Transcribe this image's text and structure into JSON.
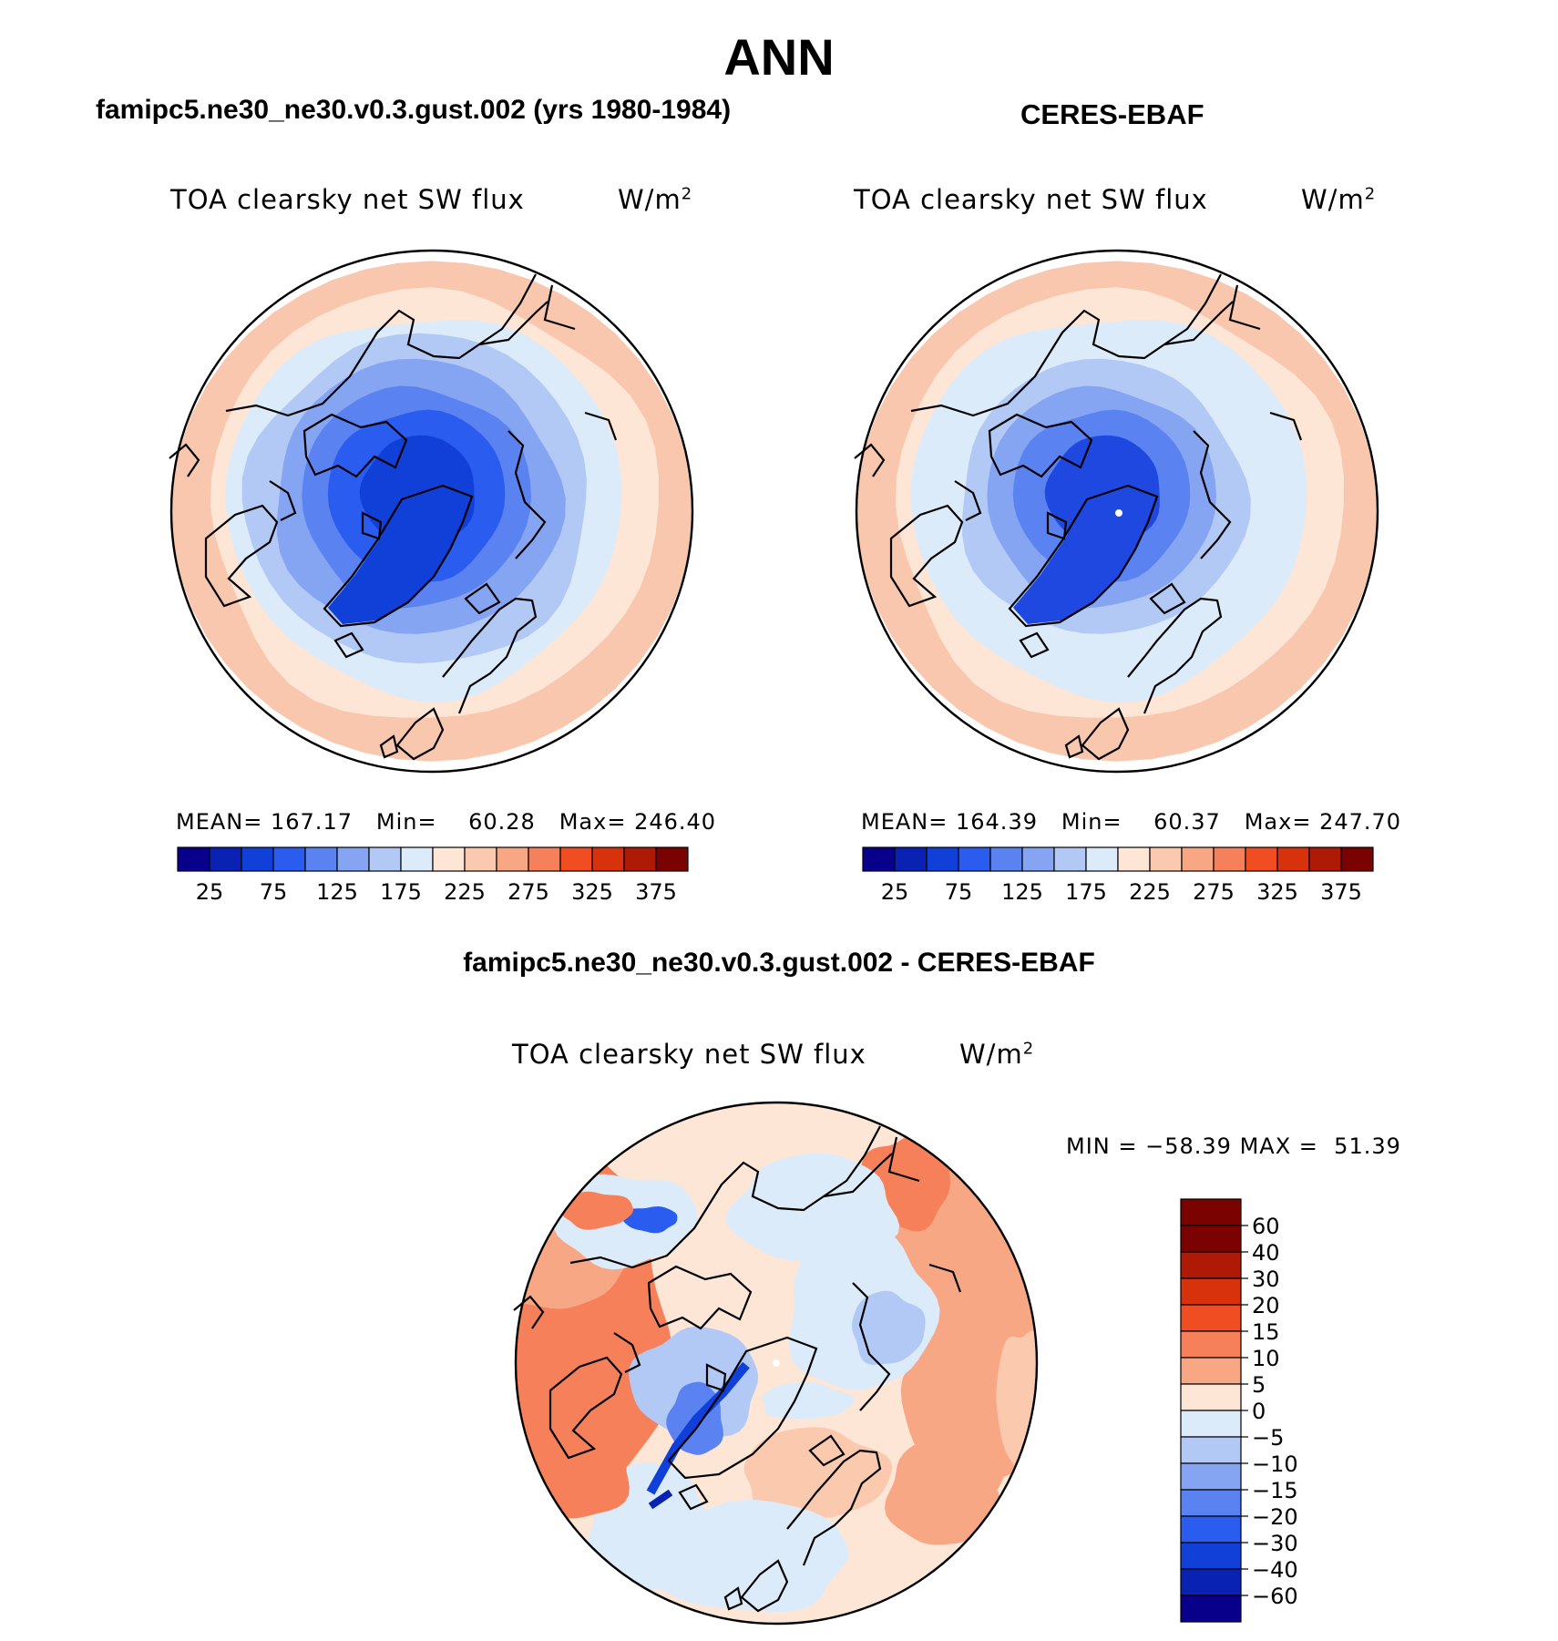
{
  "figure": {
    "main_title": "ANN",
    "variable": "TOA clearsky net SW flux",
    "units": "W/m",
    "units_superscript": "2"
  },
  "panels": {
    "model": {
      "title": "famipc5.ne30_ne30.v0.3.gust.002 (yrs 1980-1984)",
      "stats": {
        "mean_label": "MEAN=",
        "mean": "167.17",
        "min_label": "Min=",
        "min": "60.28",
        "max_label": "Max=",
        "max": "246.40"
      }
    },
    "obs": {
      "title": "CERES-EBAF",
      "stats": {
        "mean_label": "MEAN=",
        "mean": "164.39",
        "min_label": "Min=",
        "min": "60.37",
        "max_label": "Max=",
        "max": "247.70"
      }
    },
    "diff": {
      "title": "famipc5.ne30_ne30.v0.3.gust.002 - CERES-EBAF",
      "stats": {
        "min_label": "MIN =",
        "min": "−58.39",
        "max_label": "MAX =",
        "max": "51.39"
      }
    }
  },
  "colorbars": {
    "absolute": {
      "colors": [
        "#08008a",
        "#0a22b4",
        "#1040d8",
        "#2a5cf0",
        "#5a82f0",
        "#85a5f3",
        "#b3c9f5",
        "#dcebfa",
        "#fde6d5",
        "#fbc9ae",
        "#f8a785",
        "#f6805a",
        "#f04e22",
        "#d8320c",
        "#ae1a06",
        "#7a0302"
      ],
      "tick_labels": [
        "25",
        "75",
        "125",
        "175",
        "225",
        "275",
        "325",
        "375"
      ]
    },
    "difference": {
      "colors": [
        "#7a0302",
        "#ae1a06",
        "#d8320c",
        "#f04e22",
        "#f6805a",
        "#f8a785",
        "#fde6d5",
        "#dcebfa",
        "#b3c9f5",
        "#85a5f3",
        "#5a82f0",
        "#2a5cf0",
        "#1040d8",
        "#0a22b4",
        "#08008a"
      ],
      "tick_labels": [
        "60",
        "40",
        "30",
        "20",
        "15",
        "10",
        "5",
        "0",
        "−5",
        "−10",
        "−15",
        "−20",
        "−30",
        "−40",
        "−60"
      ]
    }
  },
  "map_style": {
    "model": {
      "rings": [
        "#f9c6ae",
        "#fde6d5",
        "#dcebfa",
        "#b3c9f5",
        "#85a5f3",
        "#5a82f0",
        "#2a5cf0",
        "#1040d8"
      ]
    },
    "obs": {
      "rings": [
        "#f9c6ae",
        "#fde6d5",
        "#dcebfa",
        "#dcebfa",
        "#b3c9f5",
        "#85a5f3",
        "#5a82f0",
        "#1e48e0"
      ]
    },
    "diff": {
      "base": "#fde6d5"
    }
  }
}
